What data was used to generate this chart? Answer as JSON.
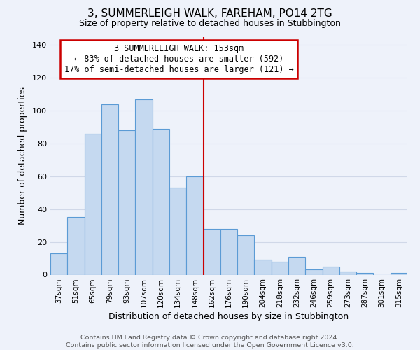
{
  "title": "3, SUMMERLEIGH WALK, FAREHAM, PO14 2TG",
  "subtitle": "Size of property relative to detached houses in Stubbington",
  "xlabel": "Distribution of detached houses by size in Stubbington",
  "ylabel": "Number of detached properties",
  "footer_line1": "Contains HM Land Registry data © Crown copyright and database right 2024.",
  "footer_line2": "Contains public sector information licensed under the Open Government Licence v3.0.",
  "bar_labels": [
    "37sqm",
    "51sqm",
    "65sqm",
    "79sqm",
    "93sqm",
    "107sqm",
    "120sqm",
    "134sqm",
    "148sqm",
    "162sqm",
    "176sqm",
    "190sqm",
    "204sqm",
    "218sqm",
    "232sqm",
    "246sqm",
    "259sqm",
    "273sqm",
    "287sqm",
    "301sqm",
    "315sqm"
  ],
  "bar_values": [
    13,
    35,
    86,
    104,
    88,
    107,
    89,
    53,
    60,
    28,
    28,
    24,
    9,
    8,
    11,
    3,
    5,
    2,
    1,
    0,
    1
  ],
  "bar_color": "#c5d9f0",
  "bar_edge_color": "#5b9bd5",
  "ylim": [
    0,
    145
  ],
  "yticks": [
    0,
    20,
    40,
    60,
    80,
    100,
    120,
    140
  ],
  "vline_index": 8.5,
  "vline_color": "#cc0000",
  "annotation_line1": "3 SUMMERLEIGH WALK: 153sqm",
  "annotation_line2": "← 83% of detached houses are smaller (592)",
  "annotation_line3": "17% of semi-detached houses are larger (121) →",
  "annotation_box_color": "#cc0000",
  "grid_color": "#d0d8e8",
  "bg_color": "#eef2fa",
  "title_fontsize": 11,
  "subtitle_fontsize": 9,
  "xlabel_fontsize": 9,
  "ylabel_fontsize": 9,
  "tick_fontsize": 7.5,
  "footer_fontsize": 6.8,
  "annotation_fontsize": 8.5
}
